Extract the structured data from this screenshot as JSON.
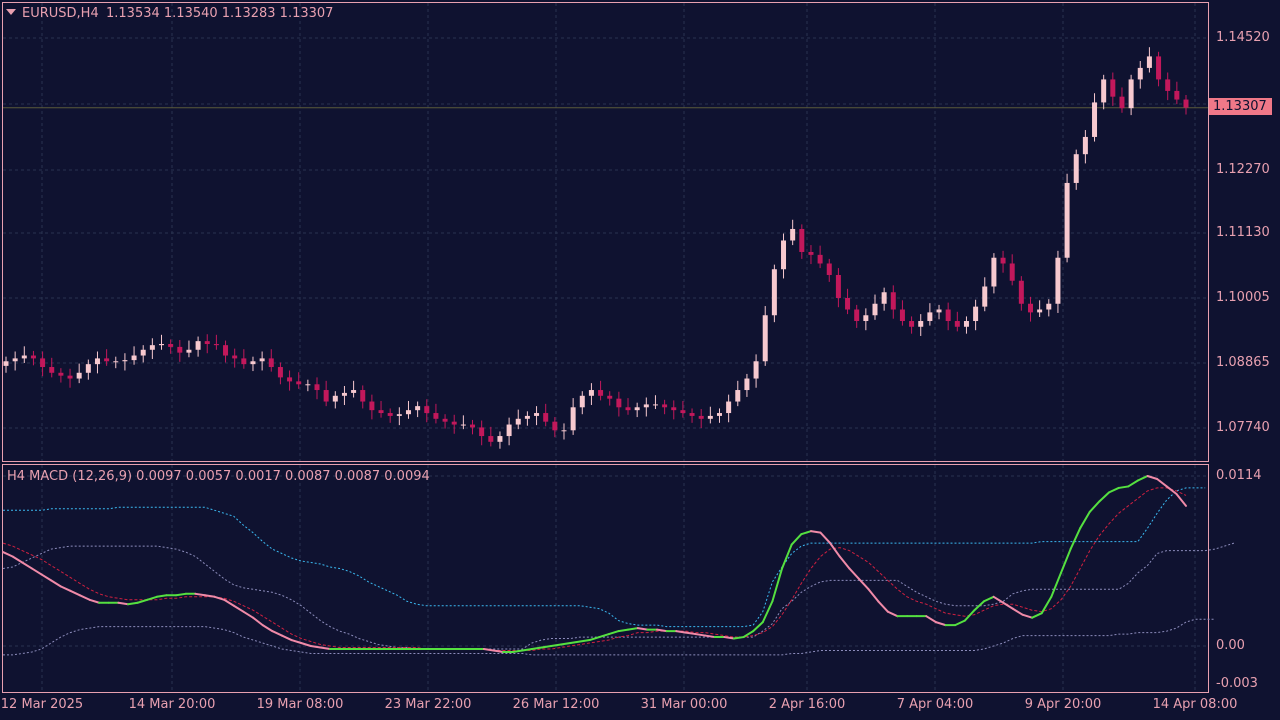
{
  "symbol_header": {
    "symbol_timeframe": "EURUSD,H4",
    "ohlc": "1.13534 1.13540 1.13283 1.13307",
    "dropdown_icon": "triangle-down-icon"
  },
  "indicator_header": {
    "label": "H4 MACD (12,26,9) 0.0097 0.0057 0.0017 0.0087 0.0087 0.0094"
  },
  "current_price": "1.13307",
  "colors": {
    "background": "#0f1230",
    "axis_text": "#e8a0b0",
    "candle_up": "#f7c9cf",
    "candle_down": "#c2185b",
    "grid": "#2a3350",
    "macd_up": "#55e040",
    "macd_down": "#f08aa8",
    "signal": "#d02040",
    "band_upper": "#3ab8f0",
    "band_mid": "#8c8cbb",
    "price_tag": "#f07888"
  },
  "chart_data": [
    {
      "type": "candlestick",
      "title": "EURUSD,H4",
      "x_ticks": [
        "12 Mar 2025",
        "14 Mar 20:00",
        "19 Mar 08:00",
        "23 Mar 22:00",
        "26 Mar 12:00",
        "31 Mar 00:00",
        "2 Apr 16:00",
        "7 Apr 04:00",
        "9 Apr 20:00",
        "14 Apr 08:00"
      ],
      "y_ticks": [
        "1.14520",
        "1.13307",
        "1.12270",
        "1.11130",
        "1.10005",
        "1.08865",
        "1.07740"
      ],
      "ylim": [
        1.072,
        1.149
      ],
      "series": [
        {
          "name": "close",
          "values": [
            1.089,
            1.0895,
            1.09,
            1.0895,
            1.088,
            1.087,
            1.0865,
            1.086,
            1.087,
            1.0885,
            1.0895,
            1.089,
            1.089,
            1.0892,
            1.09,
            1.091,
            1.0918,
            1.092,
            1.0915,
            1.0905,
            1.091,
            1.0925,
            1.092,
            1.0918,
            1.09,
            1.0895,
            1.0885,
            1.089,
            1.0895,
            1.088,
            1.0862,
            1.0855,
            1.085,
            1.085,
            1.084,
            1.082,
            1.083,
            1.0835,
            1.084,
            1.082,
            1.0805,
            1.08,
            1.0795,
            1.0798,
            1.0805,
            1.0812,
            1.08,
            1.079,
            1.0785,
            1.078,
            1.078,
            1.0775,
            1.076,
            1.075,
            1.076,
            1.078,
            1.079,
            1.0795,
            1.08,
            1.0785,
            1.077,
            1.077,
            1.081,
            1.083,
            1.084,
            1.083,
            1.0825,
            1.081,
            1.0805,
            1.081,
            1.0815,
            1.0815,
            1.081,
            1.0805,
            1.08,
            1.0795,
            1.079,
            1.0795,
            1.08,
            1.082,
            1.084,
            1.086,
            1.089,
            1.097,
            1.105,
            1.11,
            1.112,
            1.108,
            1.1075,
            1.106,
            1.104,
            1.1,
            1.098,
            1.096,
            1.097,
            1.099,
            1.101,
            1.098,
            1.096,
            1.095,
            1.096,
            1.0975,
            1.098,
            1.096,
            1.095,
            1.096,
            1.0985,
            1.102,
            1.107,
            1.106,
            1.103,
            1.099,
            1.0975,
            1.098,
            1.099,
            1.107,
            1.12,
            1.125,
            1.128,
            1.134,
            1.138,
            1.135,
            1.133,
            1.138,
            1.14,
            1.142,
            1.138,
            1.136,
            1.1345,
            1.1331
          ]
        }
      ]
    },
    {
      "type": "line",
      "title": "H4 MACD (12,26,9)",
      "y_ticks": [
        "0.0114",
        "0.00",
        "-0.003"
      ],
      "ylim": [
        -0.0035,
        0.0118
      ],
      "series": [
        {
          "name": "MACD",
          "values": [
            0.0063,
            0.006,
            0.0056,
            0.0052,
            0.0048,
            0.0044,
            0.004,
            0.0037,
            0.0034,
            0.0031,
            0.0029,
            0.0029,
            0.0029,
            0.0028,
            0.0029,
            0.0031,
            0.0033,
            0.0034,
            0.0034,
            0.0035,
            0.0035,
            0.0034,
            0.0033,
            0.0031,
            0.0027,
            0.0023,
            0.0019,
            0.0014,
            0.001,
            0.0007,
            0.0004,
            0.0002,
            0.0,
            -0.0001,
            -0.0002,
            -0.0002,
            -0.0002,
            -0.0002,
            -0.0002,
            -0.0002,
            -0.0002,
            -0.0002,
            -0.0002,
            -0.0002,
            -0.0002,
            -0.0002,
            -0.0002,
            -0.0002,
            -0.0002,
            -0.0002,
            -0.0002,
            -0.0003,
            -0.0004,
            -0.0004,
            -0.0003,
            -0.0002,
            -0.0001,
            0.0,
            0.0001,
            0.0002,
            0.0003,
            0.0004,
            0.0006,
            0.0008,
            0.001,
            0.0011,
            0.0012,
            0.0011,
            0.0011,
            0.001,
            0.001,
            0.0009,
            0.0008,
            0.0007,
            0.0006,
            0.0006,
            0.0005,
            0.0006,
            0.001,
            0.0016,
            0.003,
            0.0052,
            0.0068,
            0.0075,
            0.0077,
            0.0076,
            0.0069,
            0.006,
            0.0052,
            0.0045,
            0.0038,
            0.003,
            0.0023,
            0.002,
            0.002,
            0.002,
            0.002,
            0.0016,
            0.0014,
            0.0014,
            0.0017,
            0.0024,
            0.003,
            0.0033,
            0.0029,
            0.0025,
            0.0021,
            0.0019,
            0.0022,
            0.0033,
            0.0049,
            0.0065,
            0.0079,
            0.009,
            0.0097,
            0.0103,
            0.0106,
            0.0107,
            0.0111,
            0.0114,
            0.0112,
            0.0107,
            0.0102,
            0.0094
          ]
        },
        {
          "name": "Signal",
          "values": [
            0.0069,
            0.0067,
            0.0064,
            0.0061,
            0.0058,
            0.0054,
            0.005,
            0.0046,
            0.0042,
            0.0038,
            0.0035,
            0.0033,
            0.0032,
            0.0031,
            0.0031,
            0.0031,
            0.0031,
            0.0032,
            0.0032,
            0.0033,
            0.0033,
            0.0033,
            0.0033,
            0.0032,
            0.003,
            0.0027,
            0.0024,
            0.002,
            0.0016,
            0.0012,
            0.0008,
            0.0005,
            0.0003,
            0.0001,
            0.0,
            -0.0001,
            -0.0001,
            -0.0001,
            -0.0001,
            -0.0001,
            -0.0001,
            -0.0001,
            -0.0001,
            -0.0001,
            -0.0002,
            -0.0002,
            -0.0002,
            -0.0002,
            -0.0002,
            -0.0002,
            -0.0002,
            -0.0003,
            -0.0003,
            -0.0003,
            -0.0003,
            -0.0003,
            -0.0002,
            -0.0002,
            -0.0001,
            0.0,
            0.0001,
            0.0002,
            0.0003,
            0.0004,
            0.0006,
            0.0007,
            0.0009,
            0.0009,
            0.001,
            0.001,
            0.001,
            0.001,
            0.0009,
            0.0009,
            0.0008,
            0.0007,
            0.0006,
            0.0006,
            0.0007,
            0.0009,
            0.0013,
            0.0021,
            0.0031,
            0.0042,
            0.0052,
            0.006,
            0.0065,
            0.0066,
            0.0064,
            0.006,
            0.0056,
            0.005,
            0.0044,
            0.0038,
            0.0033,
            0.003,
            0.0028,
            0.0025,
            0.0022,
            0.0021,
            0.002,
            0.0021,
            0.0024,
            0.0027,
            0.0028,
            0.0028,
            0.0026,
            0.0024,
            0.0023,
            0.0025,
            0.0031,
            0.004,
            0.0052,
            0.0064,
            0.0074,
            0.0082,
            0.0089,
            0.0094,
            0.0099,
            0.0104,
            0.0106,
            0.0106,
            0.0104,
            0.0101
          ]
        },
        {
          "name": "Upper band",
          "values": [
            0.0091,
            0.0091,
            0.0091,
            0.0091,
            0.0091,
            0.0092,
            0.0092,
            0.0092,
            0.0092,
            0.0092,
            0.0092,
            0.0092,
            0.0093,
            0.0093,
            0.0093,
            0.0093,
            0.0093,
            0.0093,
            0.0093,
            0.0093,
            0.0093,
            0.0093,
            0.0091,
            0.0089,
            0.0087,
            0.0081,
            0.0076,
            0.007,
            0.0065,
            0.0062,
            0.0059,
            0.0057,
            0.0056,
            0.0055,
            0.0053,
            0.0052,
            0.005,
            0.0047,
            0.0043,
            0.004,
            0.0037,
            0.0034,
            0.003,
            0.0028,
            0.0027,
            0.0027,
            0.0027,
            0.0027,
            0.0027,
            0.0027,
            0.0027,
            0.0027,
            0.0027,
            0.0027,
            0.0027,
            0.0027,
            0.0027,
            0.0027,
            0.0027,
            0.0027,
            0.0027,
            0.0026,
            0.0025,
            0.0022,
            0.0017,
            0.0015,
            0.0014,
            0.0014,
            0.0014,
            0.0013,
            0.0013,
            0.0013,
            0.0013,
            0.0013,
            0.0013,
            0.0013,
            0.0013,
            0.0013,
            0.0014,
            0.0023,
            0.0043,
            0.0053,
            0.0062,
            0.0067,
            0.0069,
            0.0069,
            0.0069,
            0.0069,
            0.0069,
            0.0069,
            0.0069,
            0.0069,
            0.0069,
            0.0069,
            0.0069,
            0.0069,
            0.0069,
            0.0069,
            0.0069,
            0.0069,
            0.0069,
            0.0069,
            0.0069,
            0.0069,
            0.0069,
            0.0069,
            0.0069,
            0.0069,
            0.007,
            0.007,
            0.007,
            0.007,
            0.007,
            0.007,
            0.007,
            0.007,
            0.007,
            0.007,
            0.007,
            0.0079,
            0.0089,
            0.0098,
            0.0104,
            0.0106,
            0.0106,
            0.0106
          ]
        },
        {
          "name": "Middle band",
          "values": [
            0.0052,
            0.0053,
            0.0056,
            0.0059,
            0.0062,
            0.0065,
            0.0066,
            0.0067,
            0.0067,
            0.0067,
            0.0067,
            0.0067,
            0.0067,
            0.0067,
            0.0067,
            0.0067,
            0.0067,
            0.0066,
            0.0065,
            0.0063,
            0.006,
            0.0055,
            0.005,
            0.0045,
            0.0041,
            0.0039,
            0.0038,
            0.0037,
            0.0036,
            0.0034,
            0.0031,
            0.0027,
            0.0022,
            0.0017,
            0.0013,
            0.001,
            0.0008,
            0.0005,
            0.0003,
            0.0001,
            0.0,
            -0.0001,
            -0.0001,
            -0.0002,
            -0.0002,
            -0.0002,
            -0.0002,
            -0.0002,
            -0.0002,
            -0.0002,
            -0.0002,
            -0.0002,
            -0.0002,
            -0.0002,
            -0.0002,
            0.0002,
            0.0004,
            0.0005,
            0.0005,
            0.0005,
            0.0006,
            0.0006,
            0.0006,
            0.0006,
            0.0006,
            0.0006,
            0.0006,
            0.0006,
            0.0006,
            0.0006,
            0.0006,
            0.0006,
            0.0006,
            0.0006,
            0.0006,
            0.0006,
            0.0006,
            0.0006,
            0.0006,
            0.001,
            0.0015,
            0.0025,
            0.003,
            0.0036,
            0.004,
            0.0043,
            0.0044,
            0.0044,
            0.0044,
            0.0044,
            0.0044,
            0.0044,
            0.0044,
            0.0044,
            0.004,
            0.0036,
            0.0033,
            0.003,
            0.0028,
            0.0027,
            0.0027,
            0.0027,
            0.0027,
            0.0028,
            0.003,
            0.0035,
            0.0037,
            0.0038,
            0.0038,
            0.0038,
            0.0038,
            0.0038,
            0.0038,
            0.0038,
            0.0038,
            0.0038,
            0.0038,
            0.0042,
            0.0049,
            0.0054,
            0.0062,
            0.0064,
            0.0064,
            0.0064,
            0.0064,
            0.0064,
            0.0065,
            0.0067,
            0.0069
          ]
        },
        {
          "name": "Lower band",
          "values": [
            -0.0006,
            -0.0006,
            -0.0005,
            -0.0004,
            -0.0002,
            0.0002,
            0.0006,
            0.0009,
            0.0011,
            0.0012,
            0.0013,
            0.0013,
            0.0013,
            0.0013,
            0.0013,
            0.0013,
            0.0013,
            0.0013,
            0.0013,
            0.0013,
            0.0013,
            0.0013,
            0.0012,
            0.0011,
            0.0009,
            0.0006,
            0.0004,
            0.0002,
            0.0,
            -0.0002,
            -0.0003,
            -0.0004,
            -0.0005,
            -0.0005,
            -0.0005,
            -0.0005,
            -0.0005,
            -0.0005,
            -0.0005,
            -0.0005,
            -0.0005,
            -0.0005,
            -0.0005,
            -0.0005,
            -0.0005,
            -0.0005,
            -0.0005,
            -0.0005,
            -0.0005,
            -0.0005,
            -0.0005,
            -0.0005,
            -0.0005,
            -0.0005,
            -0.0005,
            -0.0006,
            -0.0006,
            -0.0006,
            -0.0006,
            -0.0006,
            -0.0006,
            -0.0006,
            -0.0006,
            -0.0006,
            -0.0006,
            -0.0006,
            -0.0006,
            -0.0006,
            -0.0006,
            -0.0006,
            -0.0006,
            -0.0006,
            -0.0006,
            -0.0006,
            -0.0006,
            -0.0006,
            -0.0006,
            -0.0006,
            -0.0006,
            -0.0006,
            -0.0006,
            -0.0006,
            -0.0005,
            -0.0005,
            -0.0004,
            -0.0003,
            -0.0003,
            -0.0003,
            -0.0003,
            -0.0003,
            -0.0003,
            -0.0003,
            -0.0003,
            -0.0003,
            -0.0003,
            -0.0003,
            -0.0003,
            -0.0003,
            -0.0003,
            -0.0003,
            -0.0003,
            -0.0003,
            -0.0002,
            0.0,
            0.0002,
            0.0005,
            0.0007,
            0.0007,
            0.0007,
            0.0007,
            0.0007,
            0.0007,
            0.0007,
            0.0007,
            0.0007,
            0.0007,
            0.0008,
            0.0008,
            0.0009,
            0.0009,
            0.0009,
            0.001,
            0.0012,
            0.0016,
            0.0018,
            0.0018,
            0.0018
          ]
        }
      ]
    }
  ]
}
